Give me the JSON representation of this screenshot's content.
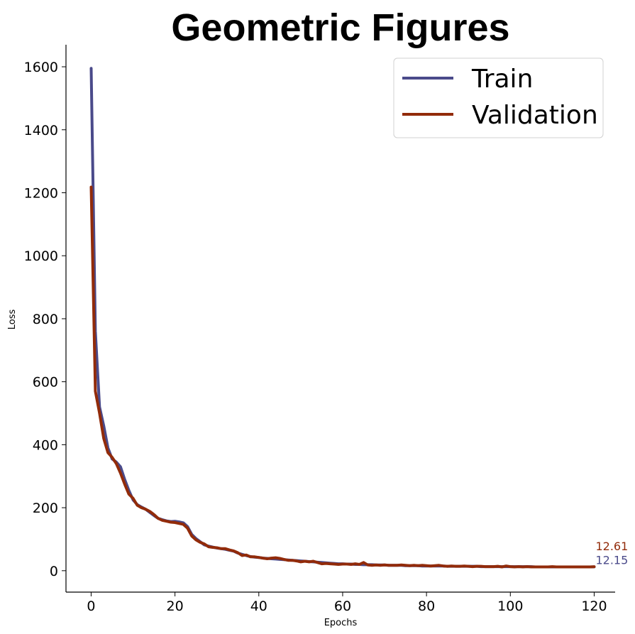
{
  "title": "Geometric Figures",
  "colors": {
    "train": "#4a4a8a",
    "validation": "#922b0a"
  },
  "chart_data": {
    "type": "line",
    "title": "Geometric Figures",
    "xlabel": "Epochs",
    "ylabel": "Loss",
    "xlim": [
      -6,
      125
    ],
    "ylim": [
      -68,
      1670
    ],
    "xticks": [
      0,
      20,
      40,
      60,
      80,
      100,
      120
    ],
    "yticks": [
      0,
      200,
      400,
      600,
      800,
      1000,
      1200,
      1400,
      1600
    ],
    "grid": false,
    "legend_position": "top-right",
    "series": [
      {
        "name": "Train",
        "color": "#4a4a8a",
        "final_label": "12.15",
        "x": [
          0,
          1,
          2,
          3,
          4,
          5,
          6,
          7,
          8,
          9,
          10,
          11,
          12,
          13,
          14,
          15,
          16,
          17,
          18,
          19,
          20,
          21,
          22,
          23,
          24,
          25,
          26,
          27,
          28,
          29,
          30,
          31,
          32,
          33,
          34,
          35,
          36,
          37,
          38,
          39,
          40,
          41,
          42,
          43,
          44,
          45,
          46,
          47,
          48,
          49,
          50,
          51,
          52,
          53,
          54,
          55,
          56,
          57,
          58,
          59,
          60,
          61,
          62,
          63,
          64,
          65,
          66,
          67,
          68,
          69,
          70,
          71,
          72,
          73,
          74,
          75,
          76,
          77,
          78,
          79,
          80,
          81,
          82,
          83,
          84,
          85,
          86,
          87,
          88,
          89,
          90,
          91,
          92,
          93,
          94,
          95,
          96,
          97,
          98,
          99,
          100,
          101,
          102,
          103,
          104,
          105,
          106,
          107,
          108,
          109,
          110,
          111,
          112,
          113,
          114,
          115,
          116,
          117,
          118,
          119,
          120
        ],
        "y": [
          1595,
          760,
          520,
          460,
          390,
          355,
          345,
          330,
          290,
          255,
          225,
          210,
          202,
          195,
          185,
          175,
          166,
          162,
          158,
          156,
          157,
          155,
          152,
          140,
          115,
          102,
          92,
          82,
          78,
          75,
          72,
          70,
          68,
          65,
          62,
          56,
          52,
          48,
          45,
          43,
          42,
          40,
          39,
          38,
          37,
          36,
          35,
          34,
          33,
          32,
          31,
          30,
          29,
          28,
          27,
          26,
          25,
          24,
          23,
          22,
          22,
          21,
          21,
          20,
          20,
          19,
          19,
          19,
          18,
          18,
          18,
          17,
          17,
          17,
          17,
          16,
          16,
          16,
          16,
          15,
          15,
          15,
          15,
          15,
          15,
          14,
          14,
          14,
          14,
          14,
          14,
          14,
          14,
          13,
          13,
          13,
          13,
          13,
          13,
          13,
          13,
          13,
          13,
          13,
          13,
          13,
          12,
          12,
          12,
          12,
          12,
          12,
          12,
          12,
          12,
          12,
          12,
          12,
          12,
          12,
          12.15
        ]
      },
      {
        "name": "Validation",
        "color": "#922b0a",
        "final_label": "12.61",
        "x": [
          0,
          1,
          2,
          3,
          4,
          5,
          6,
          7,
          8,
          9,
          10,
          11,
          12,
          13,
          14,
          15,
          16,
          17,
          18,
          19,
          20,
          21,
          22,
          23,
          24,
          25,
          26,
          27,
          28,
          29,
          30,
          31,
          32,
          33,
          34,
          35,
          36,
          37,
          38,
          39,
          40,
          41,
          42,
          43,
          44,
          45,
          46,
          47,
          48,
          49,
          50,
          51,
          52,
          53,
          54,
          55,
          56,
          57,
          58,
          59,
          60,
          61,
          62,
          63,
          64,
          65,
          66,
          67,
          68,
          69,
          70,
          71,
          72,
          73,
          74,
          75,
          76,
          77,
          78,
          79,
          80,
          81,
          82,
          83,
          84,
          85,
          86,
          87,
          88,
          89,
          90,
          91,
          92,
          93,
          94,
          95,
          96,
          97,
          98,
          99,
          100,
          101,
          102,
          103,
          104,
          105,
          106,
          107,
          108,
          109,
          110,
          111,
          112,
          113,
          114,
          115,
          116,
          117,
          118,
          119,
          120
        ],
        "y": [
          1218,
          570,
          500,
          420,
          375,
          360,
          340,
          310,
          275,
          243,
          230,
          208,
          200,
          195,
          188,
          178,
          166,
          160,
          157,
          154,
          153,
          150,
          147,
          135,
          110,
          98,
          90,
          85,
          76,
          74,
          73,
          70,
          70,
          66,
          63,
          57,
          48,
          50,
          44,
          44,
          42,
          40,
          38,
          40,
          41,
          39,
          36,
          33,
          33,
          31,
          28,
          30,
          28,
          30,
          26,
          22,
          23,
          22,
          21,
          20,
          21,
          21,
          20,
          22,
          20,
          26,
          18,
          17,
          18,
          17,
          18,
          17,
          17,
          17,
          18,
          17,
          16,
          17,
          16,
          17,
          16,
          15,
          16,
          17,
          15,
          14,
          15,
          14,
          14,
          15,
          14,
          13,
          14,
          14,
          13,
          13,
          13,
          14,
          12,
          15,
          13,
          12,
          13,
          12,
          13,
          12,
          12,
          12,
          12,
          12,
          13,
          12,
          12,
          12,
          12,
          12,
          12,
          12,
          12,
          12,
          12.61
        ]
      }
    ]
  }
}
